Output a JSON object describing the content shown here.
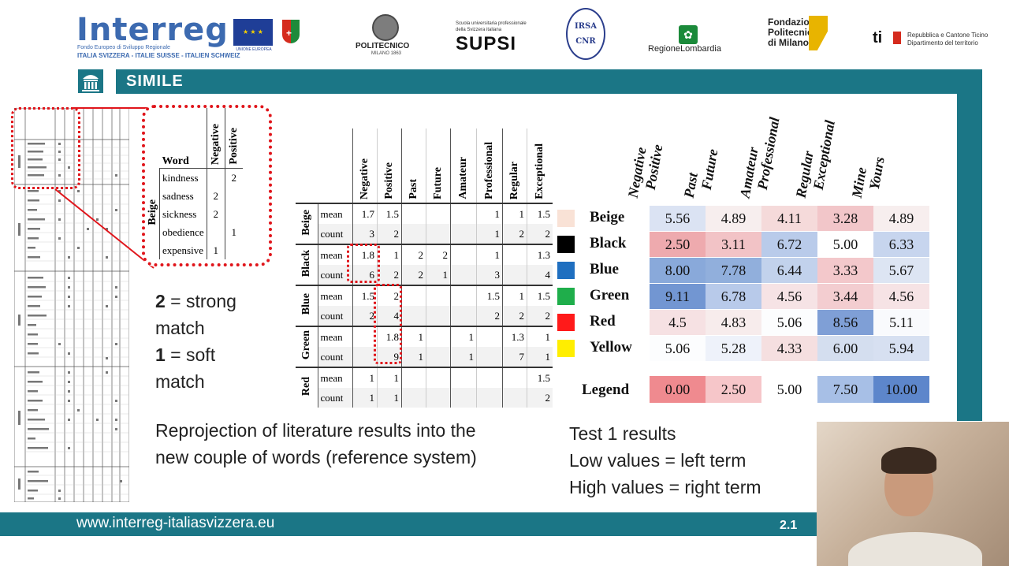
{
  "header": {
    "interreg": "Interreg",
    "interreg_sub1": "Fondo Europeo di Sviluppo Regionale",
    "interreg_sub2": "ITALIA SVIZZERA - ITALIE SUISSE - ITALIEN SCHWEIZ",
    "eu_label": "UNIONE EUROPEA",
    "polimi": "POLITECNICO",
    "polimi_sub": "MILANO 1863",
    "supsi_small": "Scuola universitaria professionale della Svizzera italiana",
    "supsi": "SUPSI",
    "irsa_1": "IRSA",
    "irsa_2": "CNR",
    "lombardia": "RegioneLombardia",
    "fondazione": "Fondazione\nPolitecnico\ndi Milano",
    "ti": "ti",
    "ti_text": "Repubblica e Cantone Ticino\nDipartimento del territorio"
  },
  "slide": {
    "title": "SIMILE",
    "footer_url": "www.interreg-italiasvizzera.eu",
    "page": "2.1"
  },
  "zoom_table": {
    "headers": [
      "Word",
      "Negative",
      "Positive"
    ],
    "group": "Beige",
    "rows": [
      {
        "word": "kindness",
        "neg": "",
        "pos": "2"
      },
      {
        "word": "sadness",
        "neg": "2",
        "pos": ""
      },
      {
        "word": "sickness",
        "neg": "2",
        "pos": ""
      },
      {
        "word": "obedience",
        "neg": "",
        "pos": "1"
      },
      {
        "word": "expensive",
        "neg": "1",
        "pos": ""
      }
    ]
  },
  "mid_table": {
    "headers": [
      "Negative",
      "Positive",
      "Past",
      "Future",
      "Amateur",
      "Professional",
      "Regular",
      "Exceptional"
    ],
    "groups": [
      {
        "name": "Beige",
        "mean": [
          "1.7",
          "1.5",
          "",
          "",
          "",
          "1",
          "1",
          "1.5"
        ],
        "count": [
          "3",
          "2",
          "",
          "",
          "",
          "1",
          "2",
          "2"
        ]
      },
      {
        "name": "Black",
        "mean": [
          "1.8",
          "1",
          "2",
          "2",
          "",
          "1",
          "",
          "1.3"
        ],
        "count": [
          "6",
          "2",
          "2",
          "1",
          "",
          "3",
          "",
          "4"
        ]
      },
      {
        "name": "Blue",
        "mean": [
          "1.5",
          "2",
          "",
          "",
          "",
          "1.5",
          "1",
          "1.5"
        ],
        "count": [
          "2",
          "4",
          "",
          "",
          "",
          "2",
          "2",
          "2"
        ]
      },
      {
        "name": "Green",
        "mean": [
          "",
          "1.8",
          "1",
          "",
          "1",
          "",
          "1.3",
          "1"
        ],
        "count": [
          "",
          "9",
          "1",
          "",
          "1",
          "",
          "7",
          "1"
        ]
      },
      {
        "name": "Red",
        "mean": [
          "1",
          "1",
          "",
          "",
          "",
          "",
          "",
          "1.5"
        ],
        "count": [
          "1",
          "1",
          "",
          "",
          "",
          "",
          "",
          "2"
        ]
      }
    ],
    "row_labels": {
      "mean": "mean",
      "count": "count"
    }
  },
  "legend_text": {
    "strong_num": "2",
    "strong": " = strong",
    "strong2": "match",
    "soft_num": "1",
    "soft": " = soft",
    "soft2": "match"
  },
  "caption_mid": [
    "Reprojection of literature results into the",
    "new couple of words (reference system)"
  ],
  "caption_right": [
    "Test 1 results",
    "Low values = left term",
    "High values = right term"
  ],
  "results": {
    "headers": [
      [
        "Negative",
        "Positive"
      ],
      [
        "Past",
        "Future"
      ],
      [
        "Amateur",
        "Professional"
      ],
      [
        "Regular",
        "Exceptional"
      ],
      [
        "Mine",
        "Yours"
      ]
    ],
    "rows": [
      {
        "label": "Beige",
        "swatch": "#f9e2d6",
        "values": [
          "5.56",
          "4.89",
          "4.11",
          "3.28",
          "4.89"
        ],
        "colors": [
          "#dbe3f3",
          "#f7eeee",
          "#f5dada",
          "#f2c6c9",
          "#f7eeee"
        ]
      },
      {
        "label": "Black",
        "swatch": "#000000",
        "values": [
          "2.50",
          "3.11",
          "6.72",
          "5.00",
          "6.33"
        ],
        "colors": [
          "#eeaaae",
          "#f2c3c6",
          "#b9cbea",
          "#ffffff",
          "#c7d5ee"
        ]
      },
      {
        "label": "Blue",
        "swatch": "#1f6fc0",
        "values": [
          "8.00",
          "7.78",
          "6.44",
          "3.33",
          "5.67"
        ],
        "colors": [
          "#89a9da",
          "#91afdc",
          "#c2d2ec",
          "#f3c8cb",
          "#dde5f3"
        ]
      },
      {
        "label": "Green",
        "swatch": "#1fae4b",
        "values": [
          "9.11",
          "6.78",
          "4.56",
          "3.44",
          "4.56"
        ],
        "colors": [
          "#7296d2",
          "#b8caea",
          "#f6e3e5",
          "#f3cdd0",
          "#f6e3e5"
        ]
      },
      {
        "label": "Red",
        "swatch": "#ff1a1a",
        "values": [
          "4.5",
          "4.83",
          "5.06",
          "8.56",
          "5.11"
        ],
        "colors": [
          "#f6e1e3",
          "#f7ecec",
          "#fcfdfe",
          "#7f9fd6",
          "#f9fafd"
        ]
      },
      {
        "label": "Yellow",
        "swatch": "#ffee00",
        "values": [
          "5.06",
          "5.28",
          "4.33",
          "6.00",
          "5.94"
        ],
        "colors": [
          "#fcfdfe",
          "#eef2fa",
          "#f5dfe0",
          "#d4deef",
          "#d7e0f1"
        ]
      }
    ],
    "legend_label": "Legend",
    "legend_values": [
      "0.00",
      "2.50",
      "5.00",
      "7.50",
      "10.00"
    ],
    "legend_colors": [
      "#ef8a8f",
      "#f6c6c9",
      "#ffffff",
      "#a7bfe6",
      "#5d86cb"
    ]
  }
}
